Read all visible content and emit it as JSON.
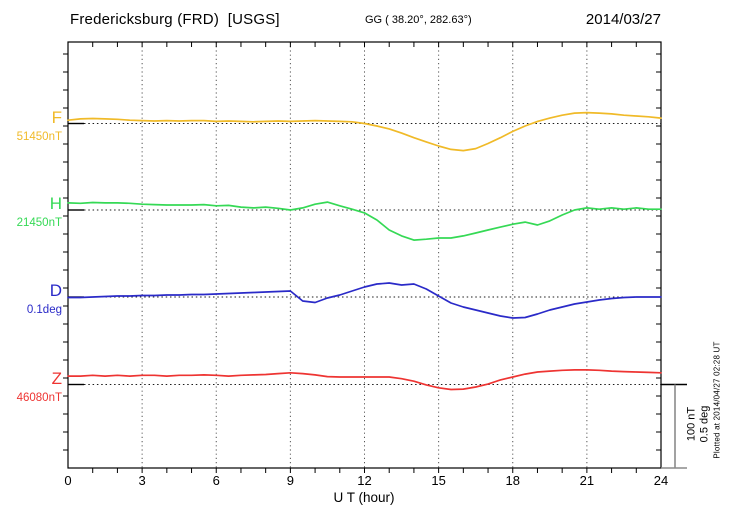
{
  "header": {
    "station_title": "Fredericksburg (FRD)  [USGS]",
    "geo_coords": "GG ( 38.20°, 282.63°)",
    "date": "2014/03/27"
  },
  "axis": {
    "xlabel": "U T (hour)",
    "x_tick_labels": [
      "0",
      "3",
      "6",
      "9",
      "12",
      "15",
      "18",
      "21",
      "24"
    ]
  },
  "scale_bar": {
    "label_nt": "100 nT",
    "label_deg": "0.5 deg"
  },
  "footer_note": "Plotted at 2014/04/27 02:28 UT",
  "chart_data": {
    "type": "line",
    "title": "Fredericksburg (FRD) [USGS] magnetogram 2014/03/27",
    "xlabel": "U T (hour)",
    "xlim": [
      0,
      24
    ],
    "x_tick_interval_hours": 3,
    "grid": "vertical dotted gridlines every 3 hours; dotted horizontal baseline per trace",
    "legend_position": "left margin, one colored label per trace",
    "scale_reference": {
      "nT_per_bar": 100,
      "deg_per_bar": 0.5
    },
    "x_hours": [
      0,
      0.5,
      1,
      1.5,
      2,
      2.5,
      3,
      3.5,
      4,
      4.5,
      5,
      5.5,
      6,
      6.5,
      7,
      7.5,
      8,
      8.5,
      9,
      9.5,
      10,
      10.5,
      11,
      11.5,
      12,
      12.5,
      13,
      13.5,
      14,
      14.5,
      15,
      15.5,
      16,
      16.5,
      17,
      17.5,
      18,
      18.5,
      19,
      19.5,
      20,
      20.5,
      21,
      21.5,
      22,
      22.5,
      23,
      23.5,
      24
    ],
    "series": [
      {
        "name": "F",
        "units": "nT",
        "baseline_label": "51450nT",
        "baseline_value": 51450,
        "color": "#f0ba28",
        "values": [
          51454,
          51455.5,
          51456,
          51455.5,
          51455,
          51454,
          51453.5,
          51453,
          51453.5,
          51453,
          51453.5,
          51453.5,
          51452.5,
          51453,
          51452.5,
          51452,
          51452.5,
          51453,
          51452.5,
          51453,
          51453.5,
          51453,
          51452.5,
          51452,
          51450,
          51447,
          51443.5,
          51438.5,
          51433,
          51428,
          51423,
          51419,
          51417.5,
          51420,
          51426,
          51433,
          51440.5,
          51447,
          51452.5,
          51456.5,
          51460,
          51462.5,
          51463,
          51462.5,
          51461.5,
          51460,
          51459,
          51458,
          51456.5
        ]
      },
      {
        "name": "H",
        "units": "nT",
        "baseline_label": "21450nT",
        "baseline_value": 21450,
        "color": "#35d955",
        "values": [
          21458.5,
          21458,
          21459,
          21458.5,
          21458.5,
          21458,
          21457,
          21456.5,
          21456,
          21456,
          21456,
          21456.5,
          21455,
          21455.5,
          21453.5,
          21452.5,
          21453.5,
          21452,
          21450,
          21452.5,
          21457,
          21459.5,
          21455,
          21451,
          21446.5,
          21438,
          21426,
          21419,
          21414,
          21415,
          21416.5,
          21416.5,
          21419,
          21422.5,
          21426,
          21429.5,
          21433,
          21435.5,
          21432,
          21437,
          21444,
          21450,
          21452.5,
          21451,
          21452.5,
          21451,
          21452.5,
          21451,
          21451
        ]
      },
      {
        "name": "D",
        "units": "deg",
        "baseline_label": "0.1deg",
        "baseline_value": 0.1,
        "color": "#2a2ac8",
        "values": [
          0.097,
          0.097,
          0.1,
          0.103,
          0.106,
          0.106,
          0.109,
          0.109,
          0.112,
          0.112,
          0.115,
          0.115,
          0.118,
          0.121,
          0.124,
          0.127,
          0.13,
          0.133,
          0.136,
          0.076,
          0.067,
          0.094,
          0.112,
          0.136,
          0.16,
          0.178,
          0.184,
          0.172,
          0.178,
          0.148,
          0.106,
          0.064,
          0.04,
          0.022,
          0.004,
          -0.014,
          -0.026,
          -0.023,
          -0.002,
          0.022,
          0.04,
          0.058,
          0.07,
          0.082,
          0.091,
          0.097,
          0.1,
          0.1,
          0.1
        ]
      },
      {
        "name": "Z",
        "units": "nT",
        "baseline_label": "46080nT",
        "baseline_value": 46080,
        "color": "#ee3432",
        "values": [
          46090,
          46090,
          46091,
          46090,
          46091,
          46090,
          46091,
          46091,
          46090,
          46091,
          46091,
          46091.5,
          46091,
          46090,
          46091,
          46091.5,
          46092,
          46093,
          46094,
          46093,
          46091.5,
          46089.5,
          46089,
          46089,
          46089,
          46089,
          46089,
          46087,
          46084,
          46079.5,
          46076,
          46074,
          46074.5,
          46077,
          46080.5,
          46085.5,
          46089,
          46092.5,
          46095,
          46096,
          46097,
          46097.5,
          46097.5,
          46097,
          46096,
          46095.5,
          46095,
          46094.5,
          46094
        ]
      }
    ]
  }
}
